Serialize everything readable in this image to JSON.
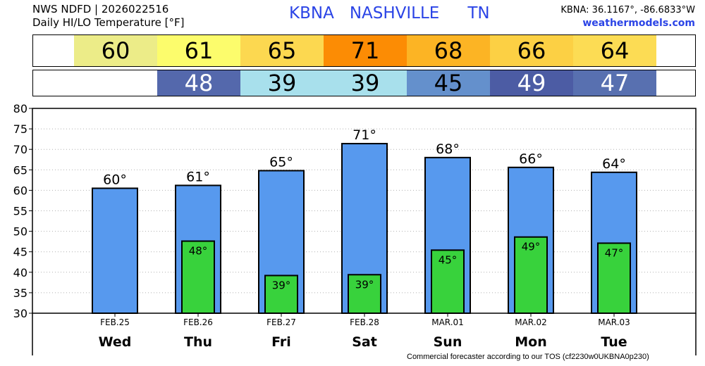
{
  "header": {
    "line1": "NWS NDFD | 2026022516",
    "line2": "Daily HI/LO Temperature [°F]",
    "station": "KBNA",
    "city": "NASHVILLE",
    "state": "TN",
    "coords": "KBNA: 36.1167°, -86.6833°W",
    "site": "weathermodels.com"
  },
  "footer": "Commercial forecaster according to our TOS (cf2230w0UKBNA0p230)",
  "colors": {
    "hi_bar": "#5799ee",
    "lo_bar": "#38d23c",
    "station_text": "#2b44e6"
  },
  "hi_strip": [
    {
      "value": "60",
      "color": "#ecec88"
    },
    {
      "value": "61",
      "color": "#fcfc6c"
    },
    {
      "value": "65",
      "color": "#fcd850"
    },
    {
      "value": "71",
      "color": "#fc8c04"
    },
    {
      "value": "68",
      "color": "#fcb424"
    },
    {
      "value": "66",
      "color": "#fcd044"
    },
    {
      "value": "64",
      "color": "#fcdc54"
    }
  ],
  "lo_strip": [
    {
      "value": "",
      "color": "#ffffff",
      "text_color": "#000000"
    },
    {
      "value": "48",
      "color": "#5468ac",
      "text_color": "#ffffff"
    },
    {
      "value": "39",
      "color": "#a8e0ec",
      "text_color": "#000000"
    },
    {
      "value": "39",
      "color": "#a8e0ec",
      "text_color": "#000000"
    },
    {
      "value": "45",
      "color": "#6490cc",
      "text_color": "#000000"
    },
    {
      "value": "49",
      "color": "#4c5ca4",
      "text_color": "#ffffff"
    },
    {
      "value": "47",
      "color": "#5870b0",
      "text_color": "#ffffff"
    }
  ],
  "chart_data": {
    "type": "bar",
    "title": "Daily HI/LO Temperature [°F]",
    "categories": [
      "FEB.25",
      "FEB.26",
      "FEB.27",
      "FEB.28",
      "MAR.01",
      "MAR.02",
      "MAR.03"
    ],
    "day_labels": [
      "Wed",
      "Thu",
      "Fri",
      "Sat",
      "Sun",
      "Mon",
      "Tue"
    ],
    "series": [
      {
        "name": "HI",
        "values": [
          60.5,
          61.2,
          64.8,
          71.4,
          68.0,
          65.6,
          64.4
        ],
        "labels": [
          "60°",
          "61°",
          "65°",
          "71°",
          "68°",
          "66°",
          "64°"
        ]
      },
      {
        "name": "LO",
        "values": [
          null,
          47.6,
          39.2,
          39.4,
          45.4,
          48.6,
          47.1
        ],
        "labels": [
          "",
          "48°",
          "39°",
          "39°",
          "45°",
          "49°",
          "47°"
        ]
      }
    ],
    "ylim": [
      30,
      80
    ],
    "yticks": [
      30,
      35,
      40,
      45,
      50,
      55,
      60,
      65,
      70,
      75,
      80
    ],
    "grid": true
  }
}
